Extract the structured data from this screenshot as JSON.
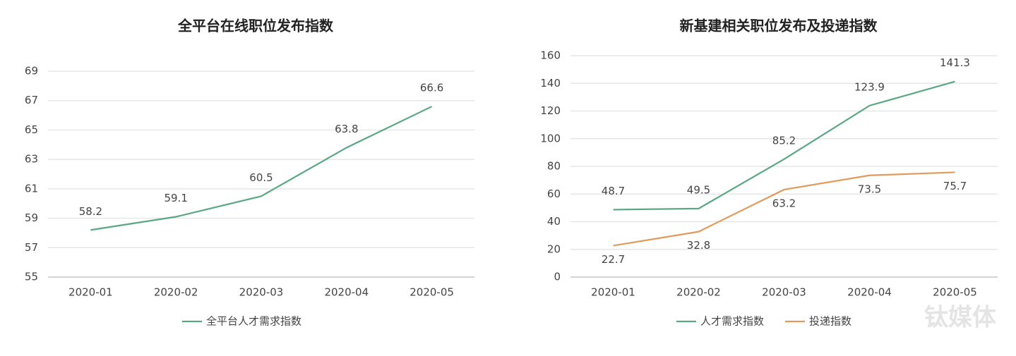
{
  "chart_data": [
    {
      "type": "line",
      "title": "全平台在线职位发布指数",
      "categories": [
        "2020-01",
        "2020-02",
        "2020-03",
        "2020-04",
        "2020-05"
      ],
      "series": [
        {
          "name": "全平台人才需求指数",
          "color": "#5aa882",
          "values": [
            58.2,
            59.1,
            60.5,
            63.8,
            66.6
          ]
        }
      ],
      "ylim": [
        55,
        69
      ],
      "yticks": [
        55,
        57,
        59,
        61,
        63,
        65,
        67,
        69
      ],
      "grid": true,
      "legend": "bottom"
    },
    {
      "type": "line",
      "title": "新基建相关职位发布及投递指数",
      "categories": [
        "2020-01",
        "2020-02",
        "2020-03",
        "2020-04",
        "2020-05"
      ],
      "series": [
        {
          "name": "人才需求指数",
          "color": "#5aa882",
          "values": [
            48.7,
            49.5,
            85.2,
            123.9,
            141.3
          ]
        },
        {
          "name": "投递指数",
          "color": "#e09a5c",
          "values": [
            22.7,
            32.8,
            63.2,
            73.5,
            75.7
          ]
        }
      ],
      "ylim": [
        0,
        160
      ],
      "yticks": [
        0,
        20,
        40,
        60,
        80,
        100,
        120,
        140,
        160
      ],
      "grid": true,
      "legend": "bottom"
    }
  ],
  "watermark": "钛媒体"
}
